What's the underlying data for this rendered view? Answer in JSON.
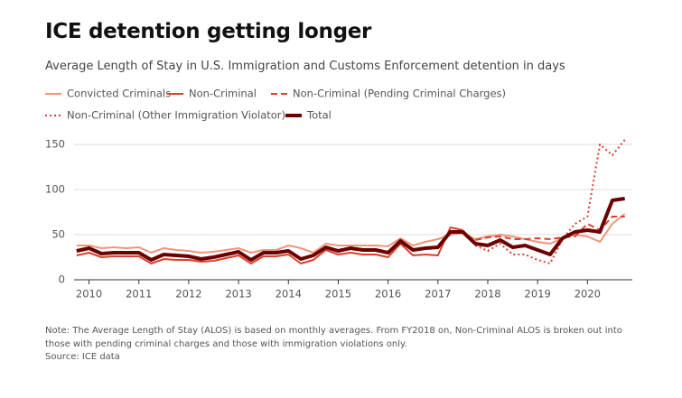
{
  "chart_data": {
    "type": "line",
    "title": "ICE detention getting longer",
    "subtitle": "Average Length of Stay in U.S. Immigration and Customs Enforcement detention in days",
    "note": "Note: The Average Length of Stay (ALOS) is based on monthly averages. From FY2018 on, Non-Criminal ALOS is broken out into those with pending criminal charges and those with immigration violations only.",
    "source": "Source: ICE data",
    "x": [
      2009.75,
      2010,
      2010.25,
      2010.5,
      2010.75,
      2011,
      2011.25,
      2011.5,
      2011.75,
      2012,
      2012.25,
      2012.5,
      2012.75,
      2013,
      2013.25,
      2013.5,
      2013.75,
      2014,
      2014.25,
      2014.5,
      2014.75,
      2015,
      2015.25,
      2015.5,
      2015.75,
      2016,
      2016.25,
      2016.5,
      2016.75,
      2017,
      2017.25,
      2017.5,
      2017.75,
      2018,
      2018.25,
      2018.5,
      2018.75,
      2019,
      2019.25,
      2019.5,
      2019.75,
      2020,
      2020.25,
      2020.5,
      2020.75
    ],
    "xlim": [
      2009.7,
      2020.9
    ],
    "xticks": [
      2010,
      2011,
      2012,
      2013,
      2014,
      2015,
      2016,
      2017,
      2018,
      2019,
      2020
    ],
    "ylim": [
      0,
      155
    ],
    "yticks": [
      0,
      50,
      100,
      150
    ],
    "grid": true,
    "series": [
      {
        "name": "Convicted Criminals",
        "color": "#f0957a",
        "style": "solid",
        "width": 2,
        "values": [
          38,
          38,
          35,
          36,
          35,
          36,
          30,
          35,
          33,
          32,
          30,
          31,
          33,
          35,
          30,
          33,
          33,
          38,
          35,
          30,
          40,
          38,
          38,
          38,
          38,
          37,
          46,
          38,
          42,
          45,
          50,
          52,
          45,
          48,
          50,
          48,
          45,
          42,
          40,
          46,
          50,
          48,
          42,
          62,
          73
        ]
      },
      {
        "name": "Non-Criminal",
        "color": "#d9412b",
        "style": "solid",
        "width": 2,
        "values": [
          27,
          30,
          25,
          26,
          26,
          26,
          18,
          23,
          22,
          22,
          20,
          21,
          24,
          27,
          18,
          26,
          26,
          28,
          18,
          22,
          33,
          28,
          30,
          28,
          28,
          25,
          40,
          27,
          28,
          27,
          58,
          55,
          null,
          null,
          null,
          null,
          null,
          null,
          null,
          null,
          null,
          null,
          null,
          null,
          null
        ]
      },
      {
        "name": "Non-Criminal (Pending Criminal Charges)",
        "color": "#d9412b",
        "style": "dashed",
        "width": 2,
        "values": [
          null,
          null,
          null,
          null,
          null,
          null,
          null,
          null,
          null,
          null,
          null,
          null,
          null,
          null,
          null,
          null,
          null,
          null,
          null,
          null,
          null,
          null,
          null,
          null,
          null,
          null,
          null,
          null,
          null,
          null,
          null,
          null,
          44,
          47,
          48,
          45,
          45,
          46,
          45,
          47,
          48,
          62,
          55,
          70,
          70
        ]
      },
      {
        "name": "Non-Criminal (Other Immigration Violator)",
        "color": "#d9412b",
        "style": "dotted",
        "width": 2,
        "values": [
          null,
          null,
          null,
          null,
          null,
          null,
          null,
          null,
          null,
          null,
          null,
          null,
          null,
          null,
          null,
          null,
          null,
          null,
          null,
          null,
          null,
          null,
          null,
          null,
          null,
          null,
          null,
          null,
          null,
          null,
          null,
          null,
          38,
          32,
          40,
          28,
          28,
          22,
          18,
          45,
          62,
          70,
          150,
          138,
          155
        ]
      },
      {
        "name": "Total",
        "color": "#6b0000",
        "style": "solid",
        "width": 4,
        "values": [
          32,
          35,
          29,
          30,
          30,
          30,
          22,
          28,
          27,
          26,
          23,
          25,
          28,
          31,
          22,
          30,
          30,
          32,
          23,
          27,
          36,
          32,
          35,
          33,
          33,
          30,
          43,
          33,
          35,
          36,
          53,
          53,
          40,
          38,
          44,
          36,
          38,
          33,
          28,
          46,
          53,
          55,
          53,
          88,
          90
        ]
      }
    ]
  }
}
